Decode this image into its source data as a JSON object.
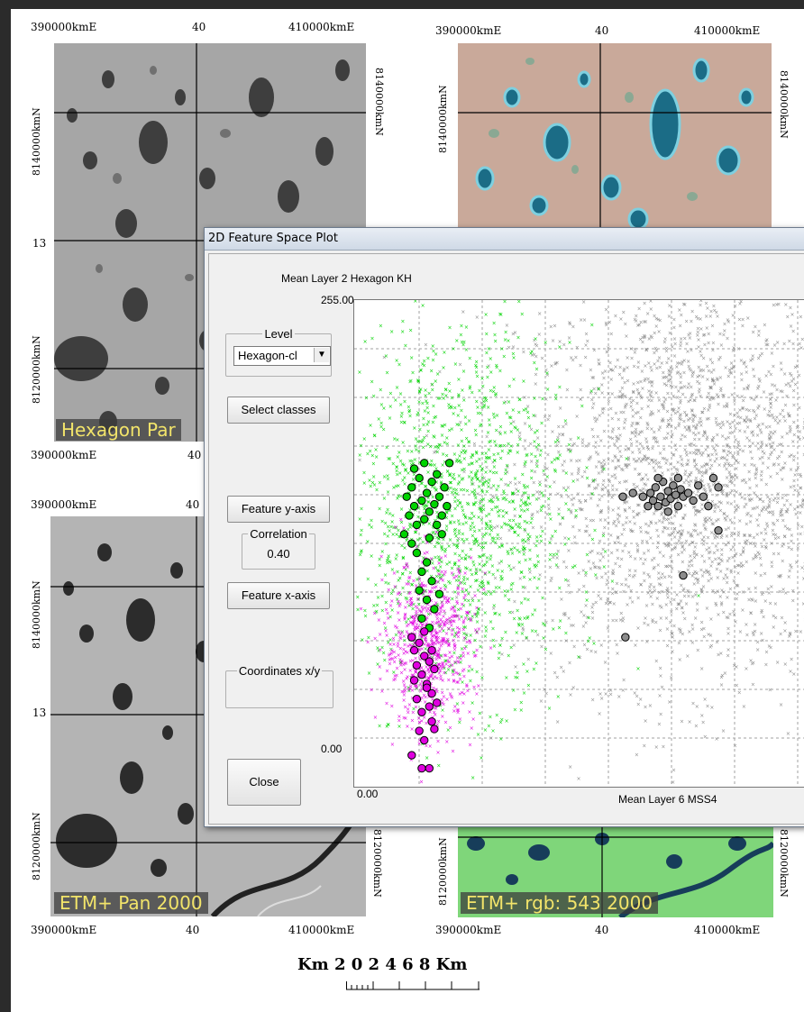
{
  "colors": {
    "accent_green": "#00d400",
    "accent_magenta": "#e000e0",
    "gray_points": "#8c8c8c",
    "caption_text": "#f2e46a"
  },
  "maps": {
    "top_left": {
      "caption": "Hexagon Par",
      "top": {
        "left": "390000kmE",
        "mid": "40",
        "right": "410000kmE"
      },
      "bottom": {
        "left": "390000kmE",
        "mid": "40"
      },
      "left_labels": {
        "n1": "8140000kmN",
        "mid": "13",
        "n2": "8120000kmN"
      },
      "right_labels": {
        "n1": "8140000kmN"
      }
    },
    "top_right": {
      "top": {
        "left": "390000kmE",
        "mid": "40",
        "right": "410000kmE"
      },
      "left_labels": {
        "n1": "8140000kmN"
      },
      "right_labels": {
        "n1": "8140000kmN"
      }
    },
    "bottom_left": {
      "caption": "ETM+ Pan 2000",
      "top": {
        "left": "390000kmE",
        "mid": "40"
      },
      "bottom": {
        "left": "390000kmE",
        "mid": "40",
        "right": "410000kmE"
      },
      "left_labels": {
        "n1": "8140000kmN",
        "mid": "13",
        "n2": "8120000kmN"
      },
      "right_labels": {
        "n2": "8120000kmN"
      }
    },
    "bottom_right": {
      "caption": "ETM+ rgb: 543 2000",
      "bottom": {
        "left": "390000kmE",
        "mid": "40",
        "right": "410000kmE"
      },
      "left_labels": {
        "n2": "8120000kmN"
      },
      "right_labels": {
        "n2": "8120000kmN"
      }
    }
  },
  "scale_bar": {
    "label": "Km 2 0 2 4 6 8 Km"
  },
  "dialog": {
    "title": "2D Feature Space Plot",
    "level_group": "Level",
    "level_value": "Hexagon-cl",
    "select_classes": "Select classes",
    "feature_y": "Feature y-axis",
    "correlation_group": "Correlation",
    "correlation_value": "0.40",
    "feature_x": "Feature x-axis",
    "coordinates_group": "Coordinates x/y",
    "close": "Close",
    "y_axis_title": "Mean Layer 2 Hexagon KH",
    "y_max": "255.00",
    "y_min": "0.00",
    "x_min": "0.00",
    "x_axis_title": "Mean Layer 6 MSS4"
  },
  "chart_data": {
    "type": "scatter",
    "xlabel": "Mean Layer 6 MSS4",
    "ylabel": "Mean Layer 2 Hexagon KH",
    "xlim": [
      0,
      null
    ],
    "ylim": [
      0,
      255
    ],
    "grid": true,
    "series": [
      {
        "color": "#00d400",
        "kind": "pixels",
        "center": [
          39,
          140
        ],
        "spread": [
          22,
          48
        ]
      },
      {
        "color": "#e000e0",
        "kind": "pixels",
        "center": [
          26,
          70
        ],
        "spread": [
          9,
          22
        ]
      },
      {
        "color": "#8c8c8c",
        "kind": "pixels",
        "center": [
          130,
          160
        ],
        "spread": [
          35,
          55
        ]
      },
      {
        "color": "#00d400",
        "kind": "objects",
        "points": [
          [
            17,
            130
          ],
          [
            18,
            150
          ],
          [
            19,
            140
          ],
          [
            20,
            155
          ],
          [
            21,
            145
          ],
          [
            22,
            135
          ],
          [
            23,
            160
          ],
          [
            24,
            148
          ],
          [
            25,
            138
          ],
          [
            26,
            152
          ],
          [
            27,
            142
          ],
          [
            28,
            158
          ],
          [
            29,
            146
          ],
          [
            30,
            135
          ],
          [
            31,
            150
          ],
          [
            32,
            140
          ],
          [
            33,
            155
          ],
          [
            34,
            145
          ],
          [
            22,
            120
          ],
          [
            24,
            110
          ],
          [
            26,
            115
          ],
          [
            28,
            105
          ],
          [
            21,
            165
          ],
          [
            25,
            168
          ],
          [
            30,
            162
          ],
          [
            35,
            168
          ],
          [
            20,
            125
          ],
          [
            27,
            128
          ],
          [
            32,
            130
          ],
          [
            23,
            100
          ],
          [
            26,
            95
          ],
          [
            29,
            90
          ],
          [
            31,
            98
          ],
          [
            24,
            85
          ],
          [
            27,
            80
          ]
        ]
      },
      {
        "color": "#e000e0",
        "kind": "objects",
        "points": [
          [
            20,
            75
          ],
          [
            21,
            68
          ],
          [
            22,
            60
          ],
          [
            23,
            72
          ],
          [
            24,
            55
          ],
          [
            25,
            65
          ],
          [
            26,
            50
          ],
          [
            27,
            62
          ],
          [
            28,
            45
          ],
          [
            29,
            58
          ],
          [
            30,
            40
          ],
          [
            22,
            42
          ],
          [
            24,
            35
          ],
          [
            26,
            48
          ],
          [
            28,
            30
          ],
          [
            23,
            25
          ],
          [
            25,
            20
          ],
          [
            27,
            38
          ],
          [
            29,
            26
          ],
          [
            21,
            52
          ],
          [
            25,
            78
          ],
          [
            28,
            68
          ],
          [
            20,
            12
          ],
          [
            24,
            5
          ],
          [
            27,
            5
          ]
        ]
      },
      {
        "color": "#8c8c8c",
        "kind": "objects",
        "points": [
          [
            112,
            150
          ],
          [
            115,
            152
          ],
          [
            116,
            148
          ],
          [
            117,
            155
          ],
          [
            118,
            145
          ],
          [
            119,
            150
          ],
          [
            120,
            158
          ],
          [
            121,
            147
          ],
          [
            122,
            153
          ],
          [
            123,
            149
          ],
          [
            124,
            156
          ],
          [
            125,
            151
          ],
          [
            126,
            145
          ],
          [
            127,
            154
          ],
          [
            128,
            150
          ],
          [
            114,
            145
          ],
          [
            118,
            160
          ],
          [
            122,
            142
          ],
          [
            126,
            160
          ],
          [
            130,
            152
          ],
          [
            132,
            148
          ],
          [
            134,
            156
          ],
          [
            136,
            150
          ],
          [
            104,
            150
          ],
          [
            108,
            152
          ],
          [
            140,
            160
          ],
          [
            142,
            155
          ],
          [
            138,
            145
          ],
          [
            142,
            132
          ],
          [
            128,
            108
          ],
          [
            105,
            75
          ]
        ]
      }
    ]
  }
}
